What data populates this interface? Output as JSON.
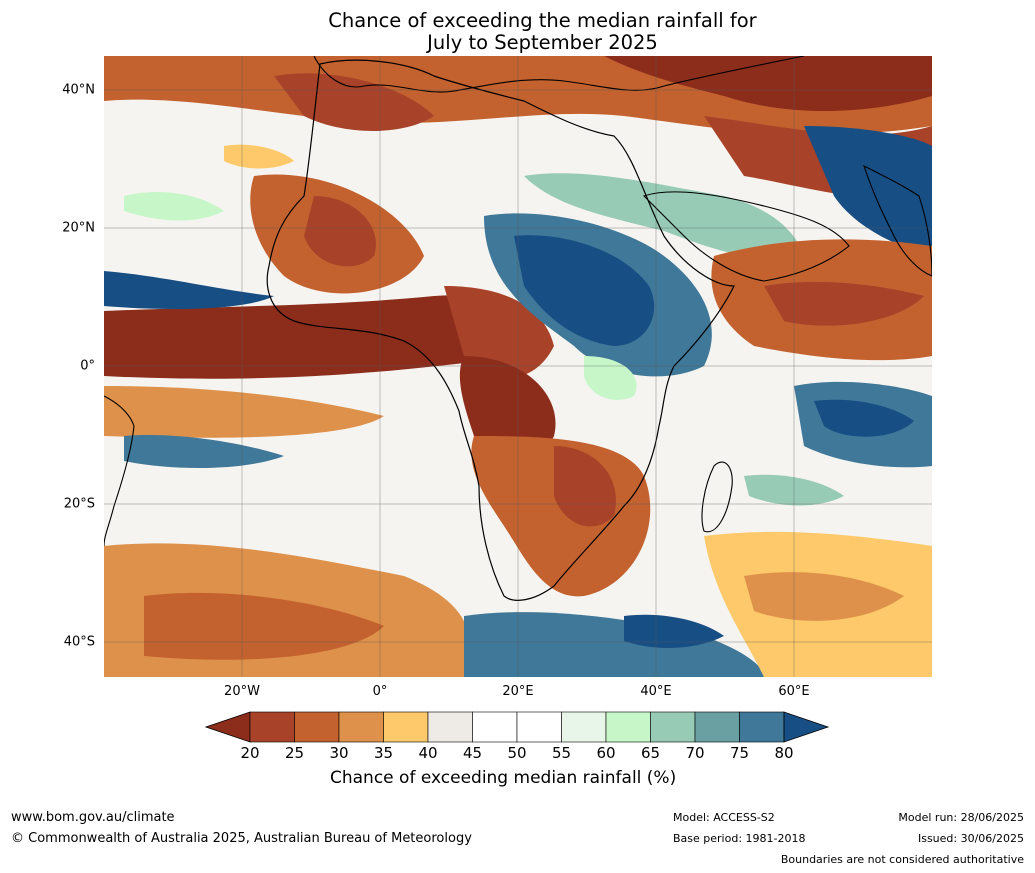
{
  "title": {
    "line1": "Chance of exceeding the median rainfall for",
    "line2": "July to September 2025"
  },
  "map": {
    "region": "Africa and surrounding oceans",
    "lat_labels": [
      "40°N",
      "20°N",
      "0°",
      "20°S",
      "40°S"
    ],
    "lon_labels": [
      "20°W",
      "0°",
      "20°E",
      "40°E",
      "60°E"
    ]
  },
  "colorbar": {
    "ticks": [
      "20",
      "25",
      "30",
      "35",
      "40",
      "45",
      "50",
      "55",
      "60",
      "65",
      "70",
      "75",
      "80"
    ],
    "colors": [
      "#8c2d1c",
      "#a8432a",
      "#c4622f",
      "#de914a",
      "#fdc96a",
      "#eeebe6",
      "#ffffff",
      "#ffffff",
      "#e7f6e8",
      "#c7f7c8",
      "#98cbb6",
      "#6aa0a2",
      "#3f7899",
      "#174e84"
    ],
    "label": "Chance of exceeding median rainfall (%)"
  },
  "footer": {
    "website": "www.bom.gov.au/climate",
    "copyright": "© Commonwealth of Australia 2025, Australian Bureau of Meteorology",
    "model": "Model: ACCESS-S2",
    "base_period": "Base period: 1981-2018",
    "model_run": "Model run: 28/06/2025",
    "issued": "Issued: 30/06/2025",
    "disclaimer": "Boundaries are not considered authoritative"
  }
}
